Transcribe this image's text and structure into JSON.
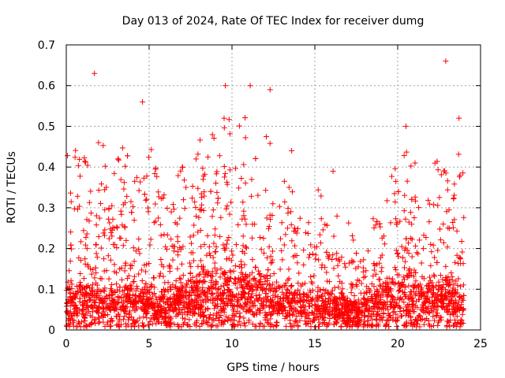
{
  "chart_data": {
    "type": "scatter",
    "title": "Day 013 of 2024, Rate Of TEC Index for receiver dumg",
    "xlabel": "GPS time / hours",
    "ylabel": "ROTI / TECUs",
    "xlim": [
      0,
      25
    ],
    "ylim": [
      0,
      0.7
    ],
    "xticks": [
      "0",
      "5",
      "10",
      "15",
      "20",
      "25"
    ],
    "yticks": [
      "0",
      "0.1",
      "0.2",
      "0.3",
      "0.4",
      "0.5",
      "0.6",
      "0.7"
    ],
    "grid": true,
    "marker": "+",
    "color": "#ff0000",
    "series": [
      {
        "name": "ROTI",
        "x_range": [
          0,
          24
        ],
        "notable_points": [
          {
            "x": 1.7,
            "y": 0.63
          },
          {
            "x": 4.6,
            "y": 0.56
          },
          {
            "x": 9.6,
            "y": 0.6
          },
          {
            "x": 11.1,
            "y": 0.6
          },
          {
            "x": 12.3,
            "y": 0.59
          },
          {
            "x": 13.6,
            "y": 0.44
          },
          {
            "x": 16.1,
            "y": 0.39
          },
          {
            "x": 20.5,
            "y": 0.5
          },
          {
            "x": 22.9,
            "y": 0.66
          },
          {
            "x": 23.7,
            "y": 0.52
          }
        ],
        "envelope": {
          "hours": [
            0,
            1,
            2,
            3,
            4,
            5,
            6,
            7,
            8,
            9,
            10,
            11,
            12,
            13,
            14,
            15,
            16,
            17,
            18,
            19,
            20,
            21,
            22,
            23,
            24
          ],
          "typical_max": [
            0.32,
            0.36,
            0.34,
            0.31,
            0.38,
            0.36,
            0.24,
            0.28,
            0.35,
            0.4,
            0.42,
            0.4,
            0.36,
            0.33,
            0.28,
            0.25,
            0.2,
            0.18,
            0.14,
            0.18,
            0.34,
            0.3,
            0.3,
            0.34,
            0.3
          ],
          "baseline": [
            0.04,
            0.05,
            0.04,
            0.05,
            0.05,
            0.04,
            0.03,
            0.05,
            0.06,
            0.07,
            0.07,
            0.06,
            0.05,
            0.04,
            0.04,
            0.03,
            0.03,
            0.02,
            0.03,
            0.04,
            0.06,
            0.05,
            0.05,
            0.05,
            0.04
          ]
        }
      }
    ]
  }
}
